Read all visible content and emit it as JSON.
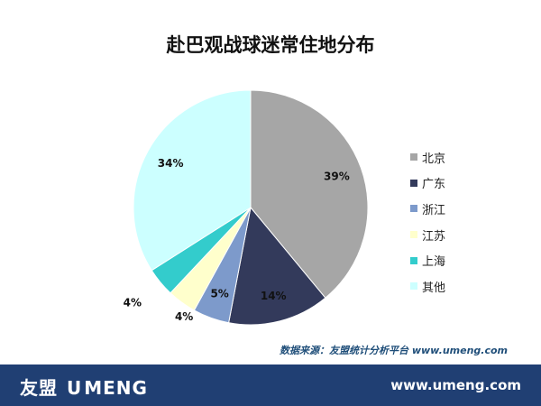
{
  "chart_data": {
    "type": "pie",
    "title": "赴巴观战球迷常住地分布",
    "categories": [
      "北京",
      "广东",
      "浙江",
      "江苏",
      "上海",
      "其他"
    ],
    "values": [
      39,
      14,
      5,
      4,
      4,
      34
    ],
    "value_labels": [
      "39%",
      "14%",
      "5%",
      "4%",
      "4%",
      "34%"
    ],
    "colors": [
      "#a6a6a6",
      "#333a5b",
      "#7d9acb",
      "#ffffcc",
      "#33cccc",
      "#ccffff"
    ],
    "legend_position": "right",
    "start_angle_deg": -90,
    "direction": "clockwise"
  },
  "source_note": "数据来源：友盟统计分析平台 www.umeng.com",
  "footer": {
    "brand_left": "友盟",
    "brand_u": "U",
    "brand_right": "MENG",
    "url": "www.umeng.com"
  }
}
